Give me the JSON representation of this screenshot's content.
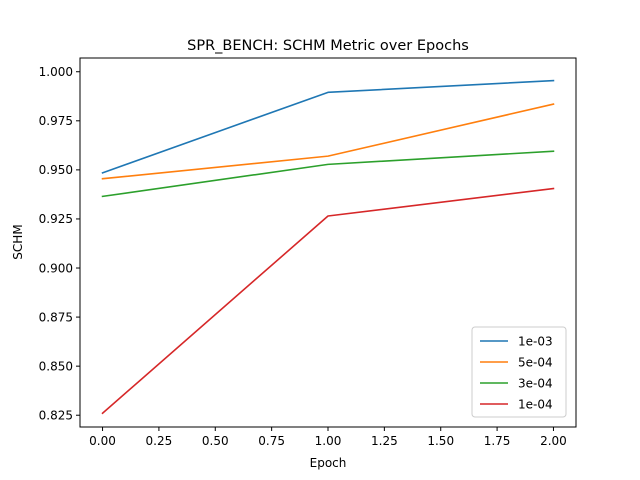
{
  "chart_data": {
    "type": "line",
    "title": "SPR_BENCH: SCHM Metric over Epochs",
    "xlabel": "Epoch",
    "ylabel": "SCHM",
    "x": [
      0,
      1,
      2
    ],
    "xlim": [
      -0.1,
      2.1
    ],
    "ylim": [
      0.819,
      1.007
    ],
    "xticks": [
      0.0,
      0.25,
      0.5,
      0.75,
      1.0,
      1.25,
      1.5,
      1.75,
      2.0
    ],
    "xtick_labels": [
      "0.00",
      "0.25",
      "0.50",
      "0.75",
      "1.00",
      "1.25",
      "1.50",
      "1.75",
      "2.00"
    ],
    "yticks": [
      0.825,
      0.85,
      0.875,
      0.9,
      0.925,
      0.95,
      0.975,
      1.0
    ],
    "ytick_labels": [
      "0.825",
      "0.850",
      "0.875",
      "0.900",
      "0.925",
      "0.950",
      "0.975",
      "1.000"
    ],
    "grid": false,
    "legend_position": "lower-right",
    "series": [
      {
        "name": "1e-03",
        "color": "#1f77b4",
        "values": [
          0.9485,
          0.9895,
          0.9955
        ]
      },
      {
        "name": "5e-04",
        "color": "#ff7f0e",
        "values": [
          0.9455,
          0.957,
          0.9835
        ]
      },
      {
        "name": "3e-04",
        "color": "#2ca02c",
        "values": [
          0.9365,
          0.9528,
          0.9595
        ]
      },
      {
        "name": "1e-04",
        "color": "#d62728",
        "values": [
          0.826,
          0.9265,
          0.9405
        ]
      }
    ]
  }
}
